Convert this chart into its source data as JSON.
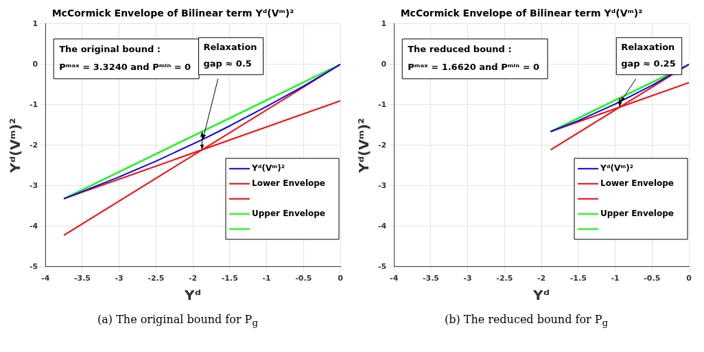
{
  "chart_data": [
    {
      "type": "line",
      "title": "McCormick Envelope of Bilinear term Yᵈ(Vᵐ)²",
      "xlabel": "Yᵈ",
      "ylabel": "Yᵈ(Vᵐ)²",
      "xlim": [
        -4,
        0
      ],
      "xticks": [
        -4,
        -3.5,
        -3,
        -2.5,
        -2,
        -1.5,
        -1,
        -0.5,
        0
      ],
      "ylim": [
        -5,
        1
      ],
      "yticks": [
        -5,
        -4,
        -3,
        -2,
        -1,
        0,
        1
      ],
      "grid": true,
      "legend": "bottom right",
      "line_style": "solid",
      "marker": "none",
      "series": [
        {
          "name": "Yᵈ(Vᵐ)²",
          "color": "#0000ff",
          "x": [
            -3.75,
            -3,
            -2.5,
            -1.875,
            -1.5,
            -1,
            -0.5,
            0
          ],
          "values": [
            -3.32,
            -2.78,
            -2.39,
            -1.86,
            -1.52,
            -1.04,
            -0.54,
            0
          ]
        },
        {
          "name": "Lower Envelope",
          "color": "#ff0000",
          "x": [
            -3.75,
            0
          ],
          "values": [
            -4.22,
            0
          ]
        },
        {
          "color": "#ff0000",
          "x": [
            -3.75,
            0
          ],
          "values": [
            -3.32,
            -0.9
          ]
        },
        {
          "name": "Upper Envelope",
          "color": "#00ff00",
          "x": [
            -3.75,
            0
          ],
          "values": [
            -3.32,
            0
          ]
        },
        {
          "color": "#00ff00",
          "x": [
            -3.75,
            0
          ],
          "values": [
            -3.32,
            0
          ]
        }
      ],
      "annotations": [
        "The original bound :\nPᵐᵃˣ = 3.3240 and Pᵐⁱⁿ = 0",
        {
          "text": "Relaxation\ngap ≈ 0.5",
          "x": -1.875,
          "y": -1.86
        },
        "(a) The original bound for P$_{g}$"
      ]
    },
    {
      "type": "line",
      "title": "McCormick Envelope of Bilinear term Yᵈ(Vᵐ)²",
      "xlabel": "Yᵈ",
      "ylabel": "Yᵈ(Vᵐ)²",
      "xlim": [
        -4,
        0
      ],
      "xticks": [
        -4,
        -3.5,
        -3,
        -2.5,
        -2,
        -1.5,
        -1,
        -0.5,
        0
      ],
      "ylim": [
        -5,
        1
      ],
      "yticks": [
        -5,
        -4,
        -3,
        -2,
        -1,
        0,
        1
      ],
      "grid": true,
      "legend": "bottom right",
      "line_style": "solid",
      "marker": "none",
      "series": [
        {
          "name": "Yᵈ(Vᵐ)²",
          "color": "#0000ff",
          "x": [
            -1.875,
            -1.5,
            -1,
            -0.5,
            0
          ],
          "values": [
            -1.66,
            -1.39,
            -0.98,
            -0.52,
            0
          ]
        },
        {
          "name": "Lower Envelope",
          "color": "#ff0000",
          "x": [
            -1.875,
            0
          ],
          "values": [
            -2.11,
            0
          ]
        },
        {
          "color": "#ff0000",
          "x": [
            -1.875,
            0
          ],
          "values": [
            -1.66,
            -0.45
          ]
        },
        {
          "name": "Upper Envelope",
          "color": "#00ff00",
          "x": [
            -1.875,
            0
          ],
          "values": [
            -1.66,
            0
          ]
        },
        {
          "color": "#00ff00",
          "x": [
            -1.875,
            0
          ],
          "values": [
            -1.66,
            0
          ]
        }
      ],
      "annotations": [
        "The reduced bound :\nPᵐᵃˣ = 1.6620 and Pᵐⁱⁿ = 0",
        {
          "text": "Relaxation\ngap ≈ 0.25",
          "x": -0.9375,
          "y": -0.93
        },
        "(b) The reduced bound for P$_{g}$"
      ]
    }
  ]
}
